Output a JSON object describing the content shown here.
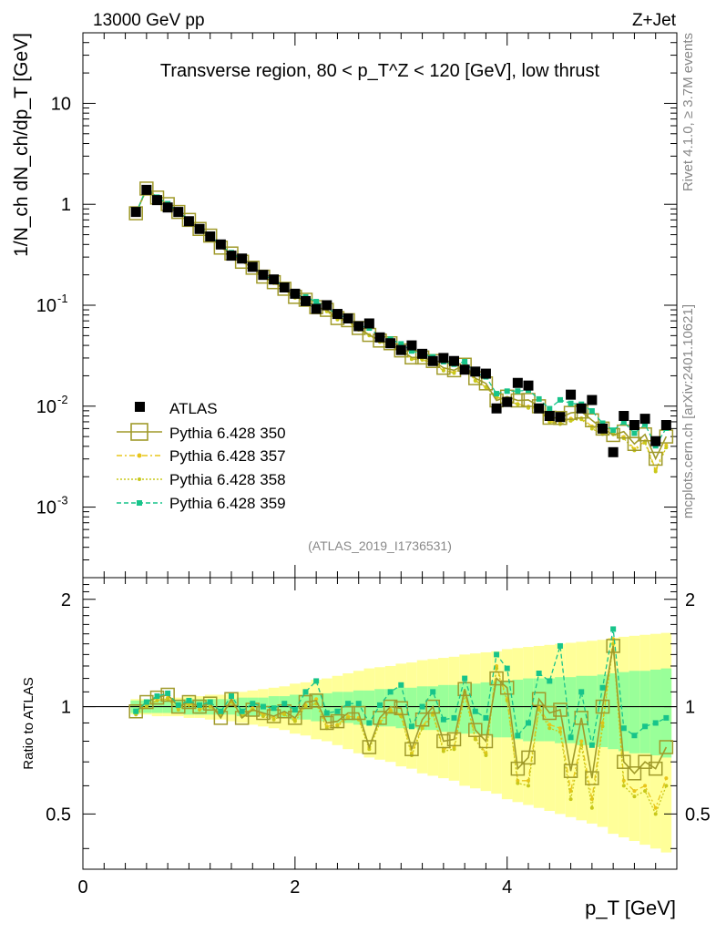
{
  "chart_data": {
    "type": "scatter",
    "title": "Transverse region, 80 < p_T^Z < 120 [GeV], low thrust",
    "header_left": "13000 GeV pp",
    "header_right": "Z+Jet",
    "analysis_id": "(ATLAS_2019_I1736531)",
    "side_label_top": "Rivet 4.1.0, ≥ 3.7M events",
    "side_label_bottom": "mcplots.cern.ch [arXiv:2401.10621]",
    "xlabel": "p_T [GeV]",
    "ylabel": "1/N_ch dN_ch/dp_T [GeV]",
    "ratio_ylabel": "Ratio to ATLAS",
    "xlim": [
      0,
      5.6
    ],
    "ylim": [
      0.0002,
      50
    ],
    "ratio_ylim": [
      0.35,
      2.3
    ],
    "x_ticks": [
      "0",
      "2",
      "4"
    ],
    "y_ticks": [
      "10",
      "1",
      "10^-1",
      "10^-2",
      "10^-3"
    ],
    "ratio_ticks": [
      "2",
      "1",
      "0.5"
    ],
    "colors": {
      "atlas": "#000000",
      "p350": "#a09a2a",
      "p357": "#e8c51a",
      "p358": "#c8c81a",
      "p359": "#17c48a",
      "band_yellow": "#ffff99",
      "band_green": "#99ff99"
    },
    "x": [
      0.5,
      0.6,
      0.7,
      0.8,
      0.9,
      1.0,
      1.1,
      1.2,
      1.3,
      1.4,
      1.5,
      1.6,
      1.7,
      1.8,
      1.9,
      2.0,
      2.1,
      2.2,
      2.3,
      2.4,
      2.5,
      2.6,
      2.7,
      2.8,
      2.9,
      3.0,
      3.1,
      3.2,
      3.3,
      3.4,
      3.5,
      3.6,
      3.7,
      3.8,
      3.9,
      4.0,
      4.1,
      4.2,
      4.3,
      4.4,
      4.5,
      4.6,
      4.7,
      4.8,
      4.9,
      5.0,
      5.1,
      5.2,
      5.3,
      5.4,
      5.5
    ],
    "series": [
      {
        "name": "ATLAS",
        "values": [
          0.84,
          1.39,
          1.1,
          0.93,
          0.84,
          0.68,
          0.57,
          0.48,
          0.4,
          0.31,
          0.29,
          0.24,
          0.2,
          0.18,
          0.15,
          0.13,
          0.11,
          0.092,
          0.1,
          0.082,
          0.074,
          0.062,
          0.066,
          0.048,
          0.042,
          0.036,
          0.04,
          0.033,
          0.028,
          0.03,
          0.028,
          0.023,
          0.022,
          0.021,
          0.0095,
          0.011,
          0.017,
          0.016,
          0.0095,
          0.008,
          0.0078,
          0.013,
          0.0095,
          0.0115,
          0.006,
          0.0035,
          0.008,
          0.0065,
          0.0075,
          0.0045,
          0.0065
        ]
      },
      {
        "name": "Pythia 6.428 350",
        "ratio": [
          0.97,
          1.03,
          1.06,
          1.08,
          1.0,
          1.03,
          1.0,
          1.02,
          0.93,
          1.05,
          0.93,
          0.98,
          0.96,
          0.94,
          0.97,
          0.93,
          1.03,
          1.04,
          0.9,
          0.91,
          0.96,
          0.96,
          0.77,
          0.93,
          1.0,
          0.99,
          0.76,
          0.92,
          1.0,
          0.8,
          0.81,
          1.12,
          0.86,
          0.8,
          1.2,
          1.13,
          0.67,
          0.72,
          1.05,
          0.96,
          0.98,
          0.66,
          0.93,
          0.63,
          1.0,
          1.48,
          0.7,
          0.65,
          0.7,
          0.67,
          0.77
        ]
      },
      {
        "name": "Pythia 6.428 357",
        "ratio": [
          0.96,
          1.01,
          1.04,
          1.06,
          0.99,
          1.02,
          0.99,
          1.0,
          0.95,
          1.04,
          0.94,
          0.99,
          0.95,
          0.93,
          0.96,
          0.92,
          1.01,
          1.05,
          0.88,
          0.89,
          0.94,
          0.93,
          0.77,
          0.91,
          0.98,
          0.95,
          0.74,
          0.88,
          0.96,
          0.76,
          0.77,
          1.1,
          0.82,
          0.74,
          1.3,
          1.05,
          0.62,
          0.62,
          1.0,
          0.89,
          0.87,
          0.58,
          0.8,
          0.55,
          0.9,
          1.55,
          0.62,
          0.58,
          0.6,
          0.52,
          0.63
        ]
      },
      {
        "name": "Pythia 6.428 358",
        "ratio": [
          0.95,
          1.0,
          1.04,
          1.05,
          0.98,
          1.01,
          0.98,
          1.0,
          0.95,
          1.03,
          0.94,
          0.98,
          0.94,
          0.92,
          0.95,
          0.91,
          1.0,
          1.02,
          0.87,
          0.88,
          0.93,
          0.92,
          0.76,
          0.9,
          0.97,
          0.94,
          0.73,
          0.87,
          0.95,
          0.75,
          0.76,
          1.08,
          0.81,
          0.73,
          1.28,
          1.04,
          0.61,
          0.6,
          0.98,
          0.87,
          0.85,
          0.55,
          0.78,
          0.52,
          0.88,
          1.5,
          0.6,
          0.56,
          0.58,
          0.5,
          0.6
        ]
      },
      {
        "name": "Pythia 6.428 359",
        "ratio": [
          0.97,
          1.03,
          1.07,
          1.09,
          1.01,
          1.04,
          1.01,
          1.03,
          0.97,
          1.07,
          0.97,
          1.02,
          1.0,
          0.99,
          1.02,
          0.98,
          1.1,
          1.18,
          0.96,
          0.97,
          1.02,
          1.02,
          0.9,
          1.01,
          1.1,
          1.15,
          0.88,
          1.0,
          1.1,
          0.92,
          0.93,
          1.2,
          0.97,
          0.93,
          1.4,
          1.28,
          0.83,
          0.9,
          1.24,
          1.18,
          1.48,
          0.82,
          1.1,
          0.78,
          1.13,
          1.65,
          0.87,
          0.83,
          0.88,
          0.9,
          0.93
        ]
      }
    ],
    "band_green": [
      0.04,
      0.04,
      0.04,
      0.04,
      0.04,
      0.05,
      0.05,
      0.05,
      0.05,
      0.05,
      0.06,
      0.06,
      0.06,
      0.07,
      0.07,
      0.08,
      0.08,
      0.09,
      0.09,
      0.1,
      0.1,
      0.11,
      0.11,
      0.12,
      0.12,
      0.13,
      0.13,
      0.14,
      0.14,
      0.15,
      0.15,
      0.16,
      0.16,
      0.17,
      0.18,
      0.18,
      0.19,
      0.2,
      0.2,
      0.2,
      0.21,
      0.21,
      0.22,
      0.22,
      0.23,
      0.24,
      0.25,
      0.26,
      0.26,
      0.27,
      0.28
    ],
    "band_yellow": [
      0.05,
      0.05,
      0.06,
      0.06,
      0.06,
      0.07,
      0.07,
      0.08,
      0.08,
      0.09,
      0.1,
      0.11,
      0.12,
      0.13,
      0.14,
      0.16,
      0.17,
      0.19,
      0.2,
      0.22,
      0.24,
      0.26,
      0.28,
      0.29,
      0.3,
      0.32,
      0.33,
      0.35,
      0.36,
      0.37,
      0.38,
      0.4,
      0.41,
      0.42,
      0.43,
      0.45,
      0.46,
      0.47,
      0.48,
      0.49,
      0.5,
      0.51,
      0.52,
      0.53,
      0.54,
      0.56,
      0.57,
      0.58,
      0.59,
      0.6,
      0.61
    ]
  }
}
